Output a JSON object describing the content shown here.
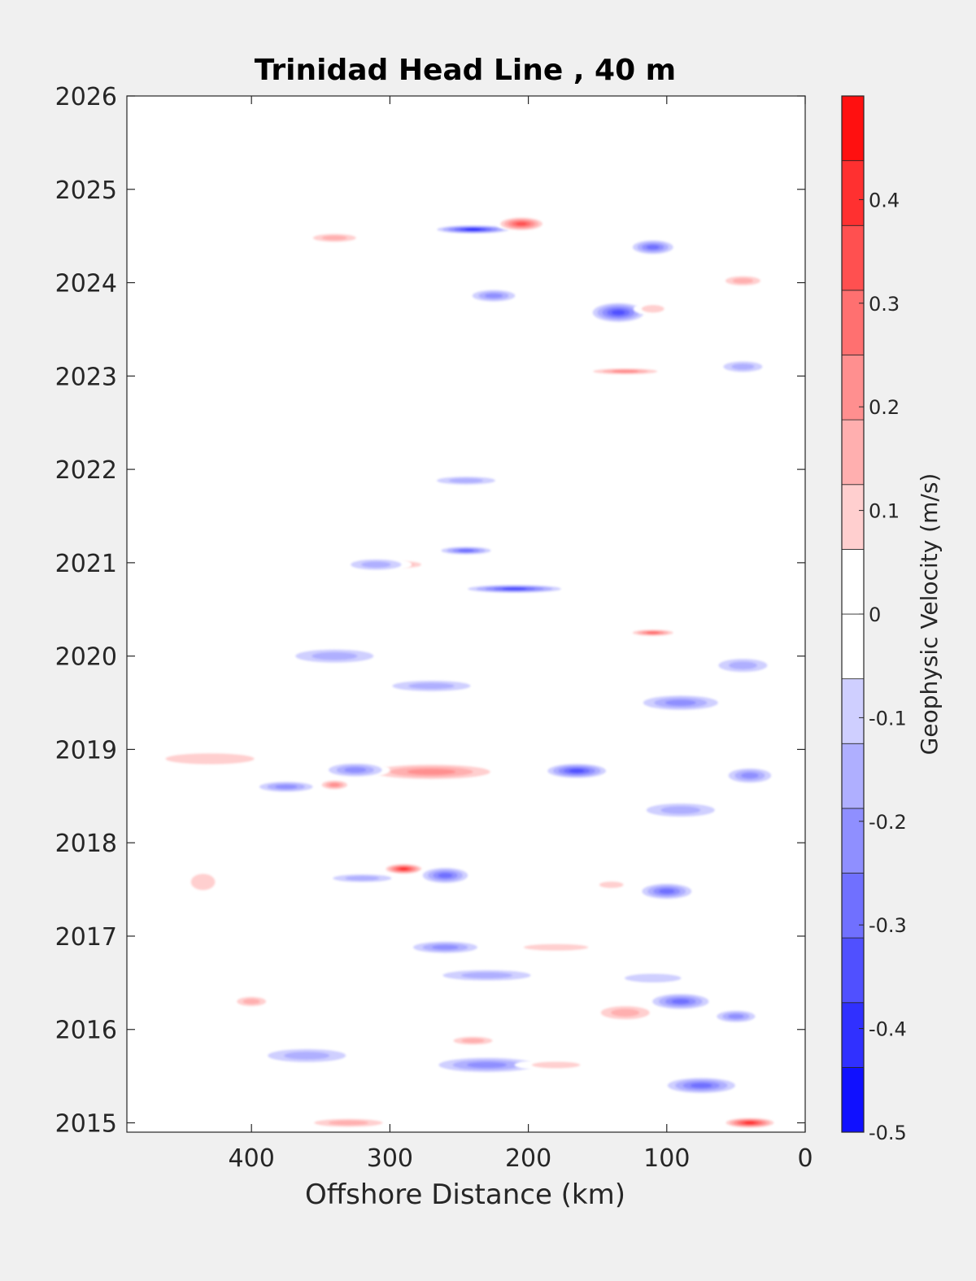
{
  "chart_data": {
    "type": "heatmap",
    "title": "Trinidad Head Line , 40 m",
    "xlabel": "Offshore Distance (km)",
    "ylabel": "",
    "x_reversed": true,
    "xlim": [
      0,
      490
    ],
    "ylim": [
      2014.9,
      2026
    ],
    "x_ticks": [
      400,
      300,
      200,
      100,
      0
    ],
    "x_tick_labels": [
      "400",
      "300",
      "200",
      "100",
      "0"
    ],
    "y_ticks": [
      2015,
      2016,
      2017,
      2018,
      2019,
      2020,
      2021,
      2022,
      2023,
      2024,
      2025,
      2026
    ],
    "y_tick_labels": [
      "2015",
      "2016",
      "2017",
      "2018",
      "2019",
      "2020",
      "2021",
      "2022",
      "2023",
      "2024",
      "2025",
      "2026"
    ],
    "colorbar": {
      "label": "Geophysic Velocity (m/s)",
      "range": [
        -0.5,
        0.5
      ],
      "levels": 16,
      "ticks": [
        -0.5,
        -0.4,
        -0.3,
        -0.2,
        -0.1,
        0,
        0.1,
        0.2,
        0.3,
        0.4
      ],
      "tick_labels": [
        "-0.5",
        "-0.4",
        "-0.3",
        "-0.2",
        "-0.1",
        "0",
        "0.1",
        "0.2",
        "0.3",
        "0.4"
      ],
      "negative_color": "#0000ff",
      "positive_color": "#ff0000",
      "zero_color": "#ffffff"
    },
    "features": [
      {
        "x": 240,
        "y": 2024.57,
        "value": -0.42,
        "rx": 30,
        "ry": 0.05
      },
      {
        "x": 205,
        "y": 2024.63,
        "value": 0.37,
        "rx": 18,
        "ry": 0.08
      },
      {
        "x": 110,
        "y": 2024.38,
        "value": -0.32,
        "rx": 18,
        "ry": 0.09
      },
      {
        "x": 135,
        "y": 2023.68,
        "value": -0.36,
        "rx": 22,
        "ry": 0.12
      },
      {
        "x": 110,
        "y": 2023.72,
        "value": 0.15,
        "rx": 14,
        "ry": 0.07
      },
      {
        "x": 340,
        "y": 2024.48,
        "value": 0.18,
        "rx": 22,
        "ry": 0.06
      },
      {
        "x": 45,
        "y": 2024.02,
        "value": 0.18,
        "rx": 18,
        "ry": 0.07
      },
      {
        "x": 225,
        "y": 2023.86,
        "value": -0.22,
        "rx": 20,
        "ry": 0.08
      },
      {
        "x": 130,
        "y": 2023.05,
        "value": 0.28,
        "rx": 30,
        "ry": 0.04
      },
      {
        "x": 45,
        "y": 2023.1,
        "value": -0.2,
        "rx": 20,
        "ry": 0.08
      },
      {
        "x": 245,
        "y": 2021.88,
        "value": -0.18,
        "rx": 30,
        "ry": 0.06
      },
      {
        "x": 210,
        "y": 2020.72,
        "value": -0.38,
        "rx": 40,
        "ry": 0.05
      },
      {
        "x": 245,
        "y": 2021.13,
        "value": -0.3,
        "rx": 22,
        "ry": 0.05
      },
      {
        "x": 290,
        "y": 2020.98,
        "value": 0.18,
        "rx": 18,
        "ry": 0.05
      },
      {
        "x": 310,
        "y": 2020.98,
        "value": -0.2,
        "rx": 26,
        "ry": 0.08
      },
      {
        "x": 110,
        "y": 2020.25,
        "value": 0.3,
        "rx": 18,
        "ry": 0.04
      },
      {
        "x": 340,
        "y": 2020.0,
        "value": -0.18,
        "rx": 40,
        "ry": 0.1
      },
      {
        "x": 270,
        "y": 2019.68,
        "value": -0.2,
        "rx": 40,
        "ry": 0.08
      },
      {
        "x": 90,
        "y": 2019.5,
        "value": -0.22,
        "rx": 35,
        "ry": 0.1
      },
      {
        "x": 45,
        "y": 2019.9,
        "value": -0.16,
        "rx": 25,
        "ry": 0.1
      },
      {
        "x": 270,
        "y": 2018.76,
        "value": 0.22,
        "rx": 55,
        "ry": 0.1
      },
      {
        "x": 165,
        "y": 2018.77,
        "value": -0.35,
        "rx": 25,
        "ry": 0.09
      },
      {
        "x": 325,
        "y": 2018.78,
        "value": -0.28,
        "rx": 25,
        "ry": 0.09
      },
      {
        "x": 375,
        "y": 2018.6,
        "value": -0.25,
        "rx": 25,
        "ry": 0.07
      },
      {
        "x": 340,
        "y": 2018.62,
        "value": 0.22,
        "rx": 12,
        "ry": 0.06
      },
      {
        "x": 430,
        "y": 2018.9,
        "value": 0.1,
        "rx": 55,
        "ry": 0.1
      },
      {
        "x": 90,
        "y": 2018.35,
        "value": -0.2,
        "rx": 35,
        "ry": 0.1
      },
      {
        "x": 40,
        "y": 2018.72,
        "value": -0.22,
        "rx": 20,
        "ry": 0.1
      },
      {
        "x": 290,
        "y": 2017.72,
        "value": 0.45,
        "rx": 15,
        "ry": 0.06
      },
      {
        "x": 260,
        "y": 2017.65,
        "value": -0.3,
        "rx": 20,
        "ry": 0.1
      },
      {
        "x": 320,
        "y": 2017.62,
        "value": -0.18,
        "rx": 30,
        "ry": 0.06
      },
      {
        "x": 100,
        "y": 2017.48,
        "value": -0.3,
        "rx": 22,
        "ry": 0.1
      },
      {
        "x": 140,
        "y": 2017.55,
        "value": 0.12,
        "rx": 15,
        "ry": 0.06
      },
      {
        "x": 435,
        "y": 2017.58,
        "value": 0.12,
        "rx": 15,
        "ry": 0.15
      },
      {
        "x": 260,
        "y": 2016.88,
        "value": -0.25,
        "rx": 30,
        "ry": 0.08
      },
      {
        "x": 180,
        "y": 2016.88,
        "value": 0.14,
        "rx": 40,
        "ry": 0.06
      },
      {
        "x": 230,
        "y": 2016.58,
        "value": -0.18,
        "rx": 45,
        "ry": 0.08
      },
      {
        "x": 110,
        "y": 2016.55,
        "value": -0.12,
        "rx": 35,
        "ry": 0.08
      },
      {
        "x": 90,
        "y": 2016.3,
        "value": -0.3,
        "rx": 25,
        "ry": 0.1
      },
      {
        "x": 50,
        "y": 2016.14,
        "value": -0.28,
        "rx": 18,
        "ry": 0.08
      },
      {
        "x": 130,
        "y": 2016.18,
        "value": 0.18,
        "rx": 25,
        "ry": 0.1
      },
      {
        "x": 400,
        "y": 2016.3,
        "value": 0.2,
        "rx": 15,
        "ry": 0.07
      },
      {
        "x": 360,
        "y": 2015.72,
        "value": -0.2,
        "rx": 40,
        "ry": 0.1
      },
      {
        "x": 230,
        "y": 2015.62,
        "value": -0.25,
        "rx": 45,
        "ry": 0.1
      },
      {
        "x": 180,
        "y": 2015.62,
        "value": 0.12,
        "rx": 30,
        "ry": 0.06
      },
      {
        "x": 75,
        "y": 2015.4,
        "value": -0.3,
        "rx": 30,
        "ry": 0.1
      },
      {
        "x": 40,
        "y": 2015.0,
        "value": 0.42,
        "rx": 20,
        "ry": 0.06
      },
      {
        "x": 330,
        "y": 2015.0,
        "value": 0.16,
        "rx": 35,
        "ry": 0.06
      },
      {
        "x": 240,
        "y": 2015.88,
        "value": 0.18,
        "rx": 20,
        "ry": 0.06
      }
    ]
  }
}
